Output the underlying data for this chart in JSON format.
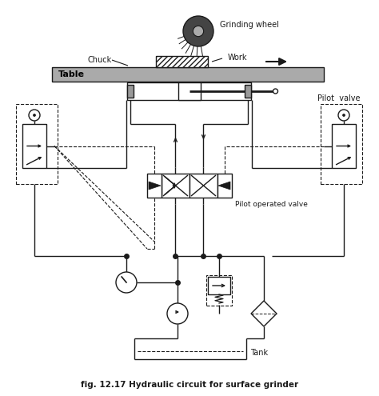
{
  "title": "fig. 12.17 Hydraulic circuit for surface grinder",
  "bg_color": "#ffffff",
  "line_color": "#1a1a1a",
  "gray_table": "#999999",
  "gray_hatch": "#bbbbbb",
  "figsize": [
    4.74,
    4.95
  ],
  "dpi": 100,
  "labels": {
    "grinding_wheel": "Grinding wheel",
    "chuck": "Chuck",
    "work": "Work",
    "table": "Table",
    "pilot_valve": "Pilot  valve",
    "pilot_operated_valve": "Pilot operated valve",
    "tank": "Tank",
    "title": "fig. 12.17 Hydraulic circuit for surface grinder"
  }
}
